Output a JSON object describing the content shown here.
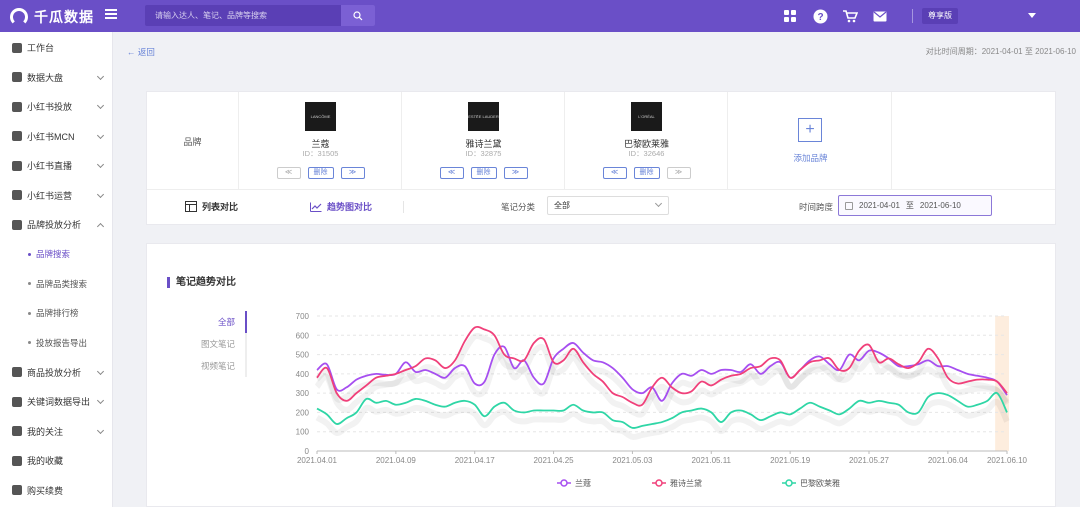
{
  "app": {
    "logo_text": "千瓜数据",
    "search_placeholder": "请输入达人、笔记、品牌等搜索",
    "user_badge": "尊享版"
  },
  "sidebar": {
    "items": [
      {
        "label": "工作台",
        "icon": "dashboard-icon",
        "type": "item"
      },
      {
        "label": "数据大盘",
        "icon": "chart-pie-icon",
        "type": "group"
      },
      {
        "label": "小红书投放",
        "icon": "megaphone-icon",
        "type": "group"
      },
      {
        "label": "小红书MCN",
        "icon": "building-icon",
        "type": "group"
      },
      {
        "label": "小红书直播",
        "icon": "video-icon",
        "type": "group"
      },
      {
        "label": "小红书运营",
        "icon": "chat-icon",
        "type": "group"
      },
      {
        "label": "品牌投放分析",
        "icon": "analytics-icon",
        "type": "group-open"
      },
      {
        "label": "品牌搜索",
        "type": "sub",
        "active": true
      },
      {
        "label": "品牌品类搜索",
        "type": "sub"
      },
      {
        "label": "品牌排行榜",
        "type": "sub"
      },
      {
        "label": "投放报告导出",
        "type": "sub"
      },
      {
        "label": "商品投放分析",
        "icon": "goods-icon",
        "type": "group"
      },
      {
        "label": "关键词数据导出",
        "icon": "export-icon",
        "type": "group"
      },
      {
        "label": "我的关注",
        "icon": "eye-icon",
        "type": "group"
      },
      {
        "label": "我的收藏",
        "icon": "bookmark-icon",
        "type": "item"
      },
      {
        "label": "购买续费",
        "icon": "cart-icon",
        "type": "item"
      }
    ]
  },
  "header": {
    "back_label": "返回",
    "date_compare": "对比时间周期：2021-04-01 至 2021-06-10"
  },
  "brands": {
    "row_label": "品牌",
    "list": [
      {
        "name": "兰蔻",
        "id": "ID：31505",
        "logo_text": "LANCÔME"
      },
      {
        "name": "雅诗兰黛",
        "id": "ID：32875",
        "logo_text": "ESTĒE LAUDER"
      },
      {
        "name": "巴黎欧莱雅",
        "id": "ID：32646",
        "logo_text": "L'ORÉAL"
      }
    ],
    "delete_label": "删除",
    "add_label": "添加品牌"
  },
  "controls": {
    "table_view": "列表对比",
    "trend_view": "趋势图对比",
    "category_label": "笔记分类",
    "category_value": "全部",
    "time_label": "时间跨度",
    "date_start": "2021-04-01",
    "date_sep": "至",
    "date_end": "2021-06-10"
  },
  "chart_section": {
    "title": "笔记趋势对比",
    "tabs": [
      "全部",
      "图文笔记",
      "视频笔记"
    ]
  },
  "colors": {
    "primary": "#6a4fc7",
    "lancome": "#a64ff0",
    "estee": "#f0407a",
    "loreal": "#2fd6a6"
  },
  "chart_data": {
    "type": "line",
    "x": [
      "2021.04.01",
      "2021.04.02",
      "2021.04.03",
      "2021.04.04",
      "2021.04.05",
      "2021.04.06",
      "2021.04.07",
      "2021.04.08",
      "2021.04.09",
      "2021.04.10",
      "2021.04.11",
      "2021.04.12",
      "2021.04.13",
      "2021.04.14",
      "2021.04.15",
      "2021.04.16",
      "2021.04.17",
      "2021.04.18",
      "2021.04.19",
      "2021.04.20",
      "2021.04.21",
      "2021.04.22",
      "2021.04.23",
      "2021.04.24",
      "2021.04.25",
      "2021.04.26",
      "2021.04.27",
      "2021.04.28",
      "2021.04.29",
      "2021.04.30",
      "2021.05.01",
      "2021.05.02",
      "2021.05.03",
      "2021.05.04",
      "2021.05.05",
      "2021.05.06",
      "2021.05.07",
      "2021.05.08",
      "2021.05.09",
      "2021.05.10",
      "2021.05.11",
      "2021.05.12",
      "2021.05.13",
      "2021.05.14",
      "2021.05.15",
      "2021.05.16",
      "2021.05.17",
      "2021.05.18",
      "2021.05.19",
      "2021.05.20",
      "2021.05.21",
      "2021.05.22",
      "2021.05.23",
      "2021.05.24",
      "2021.05.25",
      "2021.05.26",
      "2021.05.27",
      "2021.05.28",
      "2021.05.29",
      "2021.05.30",
      "2021.05.31",
      "2021.06.01",
      "2021.06.02",
      "2021.06.03",
      "2021.06.04",
      "2021.06.05",
      "2021.06.06",
      "2021.06.07",
      "2021.06.08",
      "2021.06.09",
      "2021.06.10"
    ],
    "xticks": [
      "2021.04.01",
      "2021.04.09",
      "2021.04.17",
      "2021.04.25",
      "2021.05.03",
      "2021.05.11",
      "2021.05.19",
      "2021.05.27",
      "2021.06.04",
      "2021.06.10"
    ],
    "ylim": [
      0,
      700
    ],
    "yticks": [
      0,
      100,
      200,
      300,
      400,
      500,
      600,
      700
    ],
    "series": [
      {
        "name": "兰蔻",
        "color": "#a64ff0",
        "values": [
          420,
          450,
          320,
          330,
          370,
          390,
          400,
          395,
          400,
          460,
          410,
          420,
          400,
          380,
          430,
          440,
          350,
          360,
          500,
          540,
          430,
          470,
          380,
          350,
          480,
          530,
          560,
          510,
          470,
          460,
          430,
          380,
          320,
          300,
          330,
          260,
          350,
          400,
          390,
          420,
          400,
          420,
          420,
          410,
          450,
          400,
          440,
          460,
          380,
          420,
          470,
          490,
          450,
          420,
          500,
          470,
          520,
          510,
          480,
          440,
          440,
          450,
          470,
          440,
          440,
          420,
          400,
          390,
          380,
          360,
          290
        ]
      },
      {
        "name": "雅诗兰黛",
        "color": "#f0407a",
        "values": [
          380,
          430,
          300,
          260,
          300,
          340,
          380,
          390,
          400,
          420,
          440,
          480,
          470,
          430,
          470,
          570,
          640,
          630,
          600,
          500,
          480,
          470,
          560,
          580,
          460,
          470,
          530,
          460,
          400,
          360,
          300,
          280,
          250,
          240,
          330,
          380,
          330,
          300,
          310,
          360,
          340,
          370,
          390,
          400,
          430,
          440,
          480,
          470,
          380,
          420,
          460,
          470,
          480,
          420,
          430,
          520,
          550,
          460,
          480,
          450,
          430,
          460,
          530,
          480,
          380,
          350,
          360,
          370,
          370,
          360,
          300
        ]
      },
      {
        "name": "巴黎欧莱雅",
        "color": "#2fd6a6",
        "values": [
          220,
          190,
          140,
          170,
          200,
          270,
          250,
          260,
          240,
          250,
          270,
          260,
          240,
          230,
          250,
          260,
          240,
          180,
          230,
          250,
          210,
          200,
          210,
          210,
          210,
          210,
          240,
          210,
          200,
          200,
          160,
          150,
          120,
          130,
          140,
          150,
          170,
          200,
          210,
          220,
          200,
          150,
          200,
          210,
          190,
          160,
          180,
          200,
          190,
          220,
          250,
          230,
          210,
          190,
          220,
          260,
          250,
          260,
          250,
          240,
          200,
          200,
          280,
          300,
          290,
          260,
          230,
          240,
          260,
          300,
          200
        ]
      }
    ]
  }
}
